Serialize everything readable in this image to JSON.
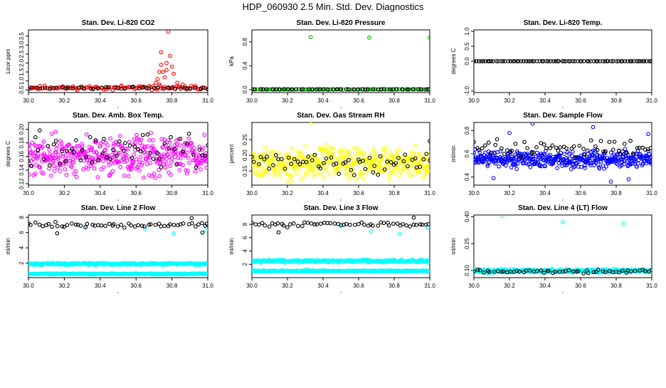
{
  "page": {
    "title": "HDP_060930  2.5 Min. Std. Dev. Diagnostics"
  },
  "chart_data": [
    {
      "type": "scatter",
      "title": "Stan. Dev. Li-820 CO2",
      "xlabel": "",
      "ylabel": "Licor ppm",
      "xlim": [
        30.0,
        31.0
      ],
      "ylim": [
        0.35,
        3.85
      ],
      "xticks": [
        "30.0",
        "30.2",
        "30.4",
        "30.6",
        "30.8",
        "31.0"
      ],
      "yticks": [
        "0.5",
        "1.0",
        "1.5",
        "2.0",
        "2.5",
        "3.0",
        "3.5"
      ],
      "series": [
        {
          "color": "#ff0000",
          "base": 0.62,
          "spread": 0.08,
          "n": 110,
          "seed": 11,
          "extra": [
            [
              30.71,
              0.9
            ],
            [
              30.72,
              1.1
            ],
            [
              30.73,
              1.5
            ],
            [
              30.74,
              1.9
            ],
            [
              30.75,
              1.5
            ],
            [
              30.76,
              1.2
            ],
            [
              30.77,
              1.6
            ],
            [
              30.78,
              3.75
            ],
            [
              30.79,
              2.4
            ],
            [
              30.8,
              1.8
            ],
            [
              30.81,
              1.4
            ],
            [
              30.74,
              2.6
            ],
            [
              30.77,
              2.0
            ],
            [
              30.73,
              0.8
            ],
            [
              30.83,
              0.9
            ],
            [
              30.86,
              0.8
            ]
          ]
        },
        {
          "color": "#000000",
          "base": 0.6,
          "spread": 0.05,
          "n": 45,
          "seed": 12,
          "extra": []
        }
      ]
    },
    {
      "type": "scatter",
      "title": "Stan. Dev. Li-820 Pressure",
      "xlabel": "",
      "ylabel": "kPa",
      "xlim": [
        30.0,
        31.0
      ],
      "ylim": [
        -0.05,
        1.0
      ],
      "xticks": [
        "30.0",
        "30.2",
        "30.4",
        "30.6",
        "30.8",
        "31.0"
      ],
      "yticks": [
        "0.0",
        "0.4",
        "0.8"
      ],
      "series": [
        {
          "color": "#00aa00",
          "base": 0.004,
          "spread": 0.003,
          "n": 90,
          "seed": 21,
          "extra": [
            [
              30.33,
              0.88
            ],
            [
              30.66,
              0.87
            ],
            [
              31.0,
              0.87
            ]
          ]
        },
        {
          "color": "#000000",
          "base": 0.004,
          "spread": 0.002,
          "n": 45,
          "seed": 22,
          "extra": []
        }
      ]
    },
    {
      "type": "scatter",
      "title": "Stan. Dev. Li-820 Temp.",
      "xlabel": "",
      "ylabel": "degrees C",
      "xlim": [
        30.0,
        31.0
      ],
      "ylim": [
        -1.05,
        1.05
      ],
      "xticks": [
        "30.0",
        "30.2",
        "30.4",
        "30.6",
        "30.8",
        "31.0"
      ],
      "yticks": [
        "-1.0",
        "0.0",
        "0.5",
        "1.0"
      ],
      "series": [
        {
          "color": "#ff00ff",
          "base": 0.0,
          "spread": 0.0,
          "n": 1,
          "seed": 31,
          "extra": [
            [
              30.0,
              0.0
            ]
          ]
        },
        {
          "color": "#000000",
          "base": 0.0,
          "spread": 0.0,
          "n": 80,
          "seed": 32,
          "extra": []
        }
      ]
    },
    {
      "type": "scatter",
      "title": "Stan. Dev. Amb. Box Temp.",
      "xlabel": "",
      "ylabel": "degrees C",
      "xlim": [
        30.0,
        31.0
      ],
      "ylim": [
        0.118,
        0.21
      ],
      "xticks": [
        "30.0",
        "30.2",
        "30.4",
        "30.6",
        "30.8",
        "31.0"
      ],
      "yticks": [
        "0.12",
        "0.14",
        "0.16",
        "0.18",
        "0.20"
      ],
      "series": [
        {
          "color": "#ff00ff",
          "base": 0.16,
          "spread": 0.02,
          "n": 420,
          "seed": 41,
          "extra": []
        },
        {
          "color": "#000000",
          "base": 0.168,
          "spread": 0.018,
          "n": 60,
          "seed": 42,
          "extra": []
        }
      ]
    },
    {
      "type": "scatter",
      "title": "Stan. Dev. Gas Stream RH",
      "xlabel": "",
      "ylabel": "percent",
      "xlim": [
        30.0,
        31.0
      ],
      "ylim": [
        0.105,
        0.305
      ],
      "xticks": [
        "30.0",
        "30.2",
        "30.4",
        "30.6",
        "30.8",
        "31.0"
      ],
      "yticks": [
        "0.15",
        "0.20",
        "0.25"
      ],
      "series": [
        {
          "color": "#ffff00",
          "base": 0.175,
          "spread": 0.035,
          "n": 420,
          "seed": 51,
          "extra": [
            [
              30.33,
              0.3
            ]
          ]
        },
        {
          "color": "#000000",
          "base": 0.178,
          "spread": 0.025,
          "n": 60,
          "seed": 52,
          "extra": [
            [
              31.0,
              0.245
            ]
          ]
        }
      ]
    },
    {
      "type": "scatter",
      "title": "Stan. Dev. Sample Flow",
      "xlabel": "",
      "ylabel": "ml/min",
      "xlim": [
        30.0,
        31.0
      ],
      "ylim": [
        0.33,
        0.87
      ],
      "xticks": [
        "30.0",
        "30.2",
        "30.4",
        "30.6",
        "30.8",
        "31.0"
      ],
      "yticks": [
        "0.4",
        "0.6",
        "0.8"
      ],
      "series": [
        {
          "color": "#0000ff",
          "base": 0.55,
          "spread": 0.05,
          "n": 420,
          "seed": 61,
          "extra": [
            [
              30.33,
              0.86
            ],
            [
              30.67,
              0.83
            ],
            [
              30.77,
              0.36
            ],
            [
              30.98,
              0.77
            ],
            [
              30.2,
              0.78
            ],
            [
              30.87,
              0.38
            ],
            [
              30.11,
              0.39
            ]
          ]
        },
        {
          "color": "#000000",
          "base": 0.65,
          "spread": 0.06,
          "n": 60,
          "seed": 62,
          "extra": []
        }
      ]
    },
    {
      "type": "scatter",
      "title": "Stan. Dev. Line 2 Flow",
      "xlabel": "",
      "ylabel": "ml/min",
      "xlim": [
        30.0,
        31.0
      ],
      "ylim": [
        0.1,
        8.3
      ],
      "xticks": [
        "30.0",
        "30.2",
        "30.4",
        "30.6",
        "30.8",
        "31.0"
      ],
      "yticks": [
        "2",
        "4",
        "6",
        "8"
      ],
      "series": [
        {
          "color": "#00ffff",
          "base": 1.9,
          "spread": 0.1,
          "n": 300,
          "seed": 71,
          "extra": [
            [
              30.32,
              6.7
            ],
            [
              30.65,
              6.5
            ],
            [
              30.81,
              5.9
            ],
            [
              30.99,
              6.3
            ]
          ]
        },
        {
          "color": "#00ffff",
          "base": 0.6,
          "spread": 0.05,
          "n": 300,
          "seed": 72,
          "extra": []
        },
        {
          "color": "#000000",
          "base": 7.0,
          "spread": 0.25,
          "n": 55,
          "seed": 73,
          "extra": [
            [
              30.16,
              5.9
            ],
            [
              30.91,
              7.9
            ],
            [
              30.97,
              6.0
            ]
          ]
        }
      ]
    },
    {
      "type": "scatter",
      "title": "Stan. Dev. Line 3 Flow",
      "xlabel": "",
      "ylabel": "ml/min",
      "xlim": [
        30.0,
        31.0
      ],
      "ylim": [
        0.0,
        9.4
      ],
      "xticks": [
        "30.0",
        "30.2",
        "30.4",
        "30.6",
        "30.8",
        "31.0"
      ],
      "yticks": [
        "2",
        "4",
        "6",
        "8"
      ],
      "series": [
        {
          "color": "#00ffff",
          "base": 2.5,
          "spread": 0.15,
          "n": 300,
          "seed": 81,
          "extra": [
            [
              30.31,
              1.3
            ],
            [
              30.5,
              7.7
            ],
            [
              30.67,
              7.0
            ],
            [
              30.83,
              6.6
            ],
            [
              30.99,
              7.5
            ]
          ]
        },
        {
          "color": "#00ffff",
          "base": 1.0,
          "spread": 0.07,
          "n": 300,
          "seed": 82,
          "extra": []
        },
        {
          "color": "#000000",
          "base": 8.0,
          "spread": 0.25,
          "n": 55,
          "seed": 83,
          "extra": [
            [
              30.15,
              6.8
            ],
            [
              30.91,
              9.0
            ]
          ]
        }
      ]
    },
    {
      "type": "scatter",
      "title": "Stan. Dev. Line 4 (LT) Flow",
      "xlabel": "",
      "ylabel": "ml/min",
      "xlim": [
        30.0,
        31.0
      ],
      "ylim": [
        0.06,
        0.41
      ],
      "xticks": [
        "30.0",
        "30.2",
        "30.4",
        "30.6",
        "30.8",
        "31.0"
      ],
      "yticks": [
        "0.10",
        "0.25",
        "0.40"
      ],
      "series": [
        {
          "color": "#00ffff",
          "base": 0.098,
          "spread": 0.007,
          "n": 350,
          "seed": 91,
          "extra": [
            [
              30.16,
              0.405
            ],
            [
              30.5,
              0.37
            ],
            [
              30.84,
              0.36
            ]
          ]
        },
        {
          "color": "#000000",
          "base": 0.095,
          "spread": 0.008,
          "n": 55,
          "seed": 92,
          "extra": []
        }
      ]
    }
  ]
}
